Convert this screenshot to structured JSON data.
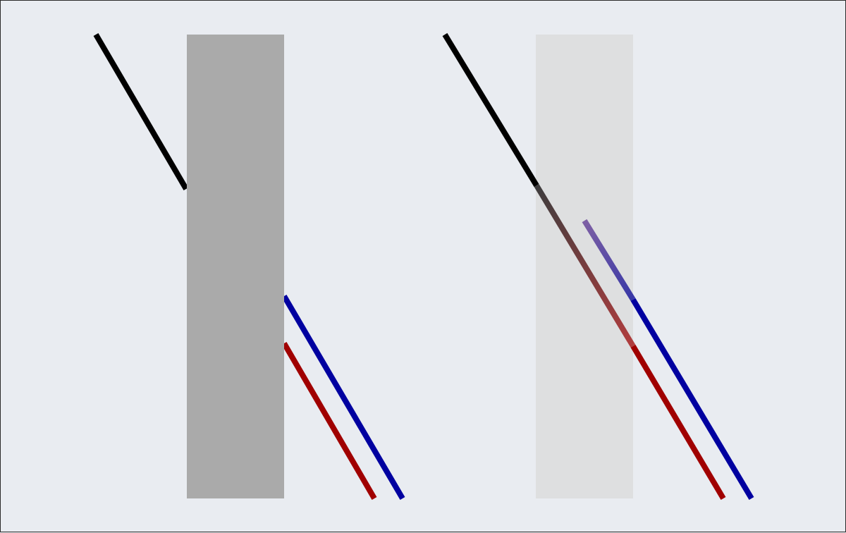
{
  "colors": {
    "background": "#e9ecf1",
    "border": "#2a2a2a",
    "black_line": "#000000",
    "red_line": "#a00000",
    "blue_line": "#0000a0",
    "opaque_panel": "#aaaaaa",
    "transparent_panel": "#dcdcdc"
  },
  "panels": [
    {
      "id": "opaque",
      "occluder": "opaque",
      "line_visibility": "hidden-behind-panel"
    },
    {
      "id": "transparent",
      "occluder": "translucent",
      "line_visibility": "shown-through-panel"
    }
  ]
}
